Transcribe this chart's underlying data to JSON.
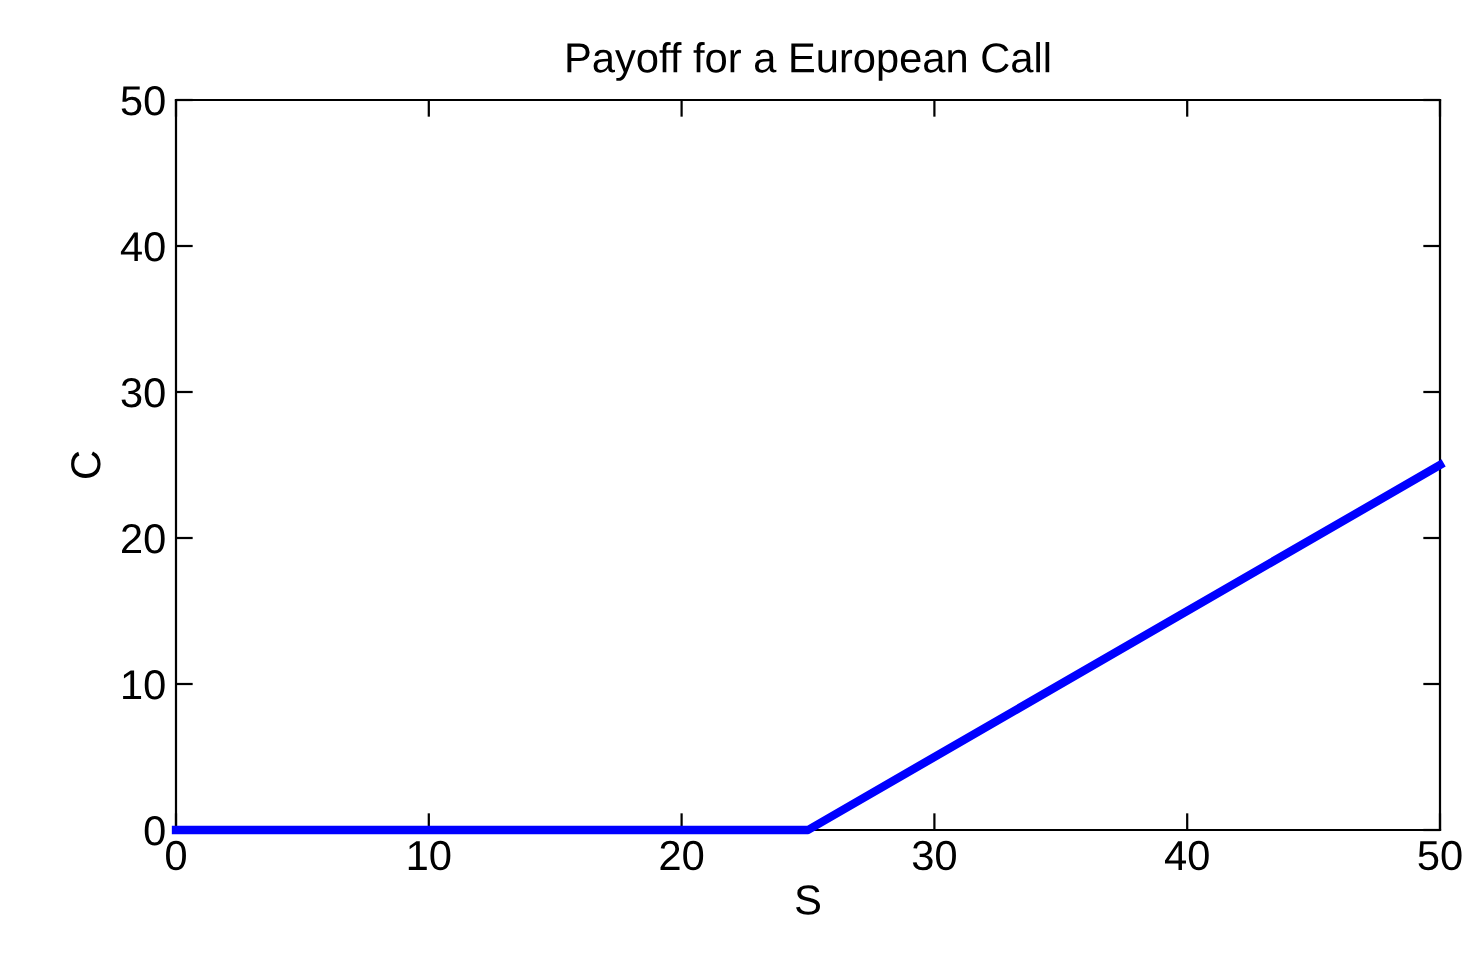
{
  "chart_data": {
    "type": "line",
    "title": "Payoff for a European Call",
    "xlabel": "S",
    "ylabel": "C",
    "x": [
      0,
      25,
      50
    ],
    "series": [
      {
        "color": "#0000ff",
        "values": [
          0,
          0,
          25
        ]
      }
    ],
    "xlim": [
      0,
      50
    ],
    "ylim": [
      0,
      50
    ],
    "xticks": [
      0,
      10,
      20,
      30,
      40,
      50
    ],
    "yticks": [
      0,
      10,
      20,
      30,
      40,
      50
    ],
    "grid": false,
    "legend": false,
    "marker": "none",
    "line_style": "solid"
  }
}
